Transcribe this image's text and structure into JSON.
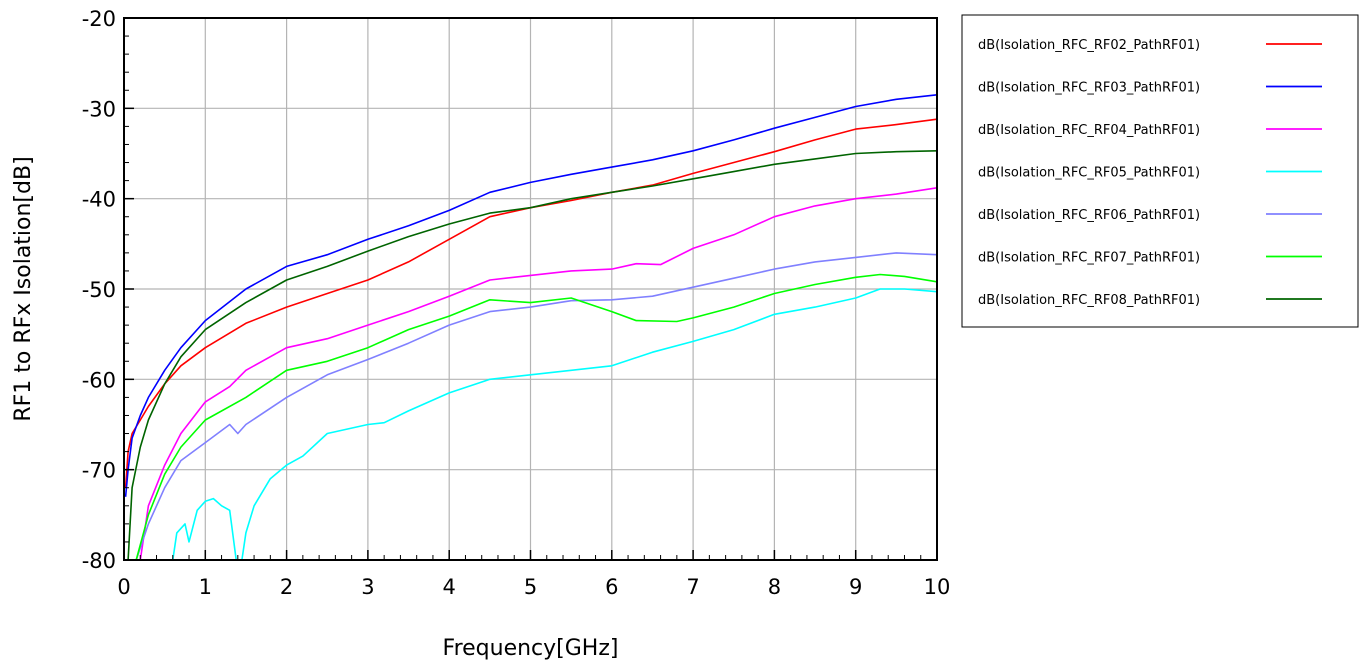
{
  "chart_data": {
    "type": "line",
    "title": "",
    "xlabel": "Frequency[GHz]",
    "ylabel": "RF1 to RFx Isolation[dB]",
    "xlim": [
      0,
      10
    ],
    "ylim": [
      -80,
      -20
    ],
    "x_ticks": [
      "0",
      "1",
      "2",
      "3",
      "4",
      "5",
      "6",
      "7",
      "8",
      "9",
      "10"
    ],
    "y_ticks": [
      "-20",
      "-30",
      "-40",
      "-50",
      "-60",
      "-70",
      "-80"
    ],
    "grid": true,
    "legend_position": "right",
    "series": [
      {
        "name": "dB(Isolation_RFC_RF02_PathRF01)",
        "color": "#ff0000",
        "points": [
          [
            0.02,
            -72
          ],
          [
            0.05,
            -68
          ],
          [
            0.1,
            -66
          ],
          [
            0.2,
            -64.5
          ],
          [
            0.3,
            -63
          ],
          [
            0.5,
            -60.5
          ],
          [
            0.7,
            -58.5
          ],
          [
            1.0,
            -56.5
          ],
          [
            1.5,
            -53.8
          ],
          [
            2.0,
            -52
          ],
          [
            2.5,
            -50.5
          ],
          [
            3.0,
            -49
          ],
          [
            3.5,
            -47
          ],
          [
            4.0,
            -44.5
          ],
          [
            4.5,
            -42
          ],
          [
            5.0,
            -41
          ],
          [
            5.5,
            -40.2
          ],
          [
            6.0,
            -39.3
          ],
          [
            6.5,
            -38.5
          ],
          [
            7.0,
            -37.2
          ],
          [
            7.5,
            -36
          ],
          [
            8.0,
            -34.8
          ],
          [
            8.5,
            -33.5
          ],
          [
            9.0,
            -32.3
          ],
          [
            9.5,
            -31.8
          ],
          [
            10.0,
            -31.2
          ]
        ]
      },
      {
        "name": "dB(Isolation_RFC_RF03_PathRF01)",
        "color": "#0000ff",
        "points": [
          [
            0.02,
            -73
          ],
          [
            0.05,
            -70
          ],
          [
            0.1,
            -66.5
          ],
          [
            0.2,
            -64
          ],
          [
            0.3,
            -62
          ],
          [
            0.5,
            -59
          ],
          [
            0.7,
            -56.5
          ],
          [
            1.0,
            -53.5
          ],
          [
            1.5,
            -50
          ],
          [
            2.0,
            -47.5
          ],
          [
            2.5,
            -46.2
          ],
          [
            3.0,
            -44.5
          ],
          [
            3.5,
            -43
          ],
          [
            4.0,
            -41.3
          ],
          [
            4.5,
            -39.3
          ],
          [
            5.0,
            -38.2
          ],
          [
            5.5,
            -37.3
          ],
          [
            6.0,
            -36.5
          ],
          [
            6.5,
            -35.7
          ],
          [
            7.0,
            -34.7
          ],
          [
            7.5,
            -33.5
          ],
          [
            8.0,
            -32.2
          ],
          [
            8.5,
            -31
          ],
          [
            9.0,
            -29.8
          ],
          [
            9.5,
            -29
          ],
          [
            10.0,
            -28.5
          ]
        ]
      },
      {
        "name": "dB(Isolation_RFC_RF04_PathRF01)",
        "color": "#ff00ff",
        "points": [
          [
            0.2,
            -80
          ],
          [
            0.3,
            -74
          ],
          [
            0.5,
            -69.5
          ],
          [
            0.7,
            -66
          ],
          [
            1.0,
            -62.5
          ],
          [
            1.3,
            -60.8
          ],
          [
            1.5,
            -59
          ],
          [
            2.0,
            -56.5
          ],
          [
            2.5,
            -55.5
          ],
          [
            3.0,
            -54
          ],
          [
            3.5,
            -52.5
          ],
          [
            4.0,
            -50.8
          ],
          [
            4.5,
            -49
          ],
          [
            5.0,
            -48.5
          ],
          [
            5.5,
            -48
          ],
          [
            6.0,
            -47.8
          ],
          [
            6.3,
            -47.2
          ],
          [
            6.6,
            -47.3
          ],
          [
            7.0,
            -45.5
          ],
          [
            7.5,
            -44
          ],
          [
            8.0,
            -42
          ],
          [
            8.5,
            -40.8
          ],
          [
            9.0,
            -40
          ],
          [
            9.5,
            -39.5
          ],
          [
            10.0,
            -38.8
          ]
        ]
      },
      {
        "name": "dB(Isolation_RFC_RF05_PathRF01)",
        "color": "#00ffff",
        "points": [
          [
            0.6,
            -80
          ],
          [
            0.65,
            -77
          ],
          [
            0.75,
            -76
          ],
          [
            0.8,
            -78
          ],
          [
            0.9,
            -74.5
          ],
          [
            1.0,
            -73.5
          ],
          [
            1.1,
            -73.2
          ],
          [
            1.2,
            -74
          ],
          [
            1.3,
            -74.5
          ],
          [
            1.38,
            -80
          ],
          [
            1.45,
            -80
          ],
          [
            1.5,
            -77
          ],
          [
            1.6,
            -74
          ],
          [
            1.8,
            -71
          ],
          [
            2.0,
            -69.5
          ],
          [
            2.2,
            -68.5
          ],
          [
            2.5,
            -66
          ],
          [
            3.0,
            -65
          ],
          [
            3.2,
            -64.8
          ],
          [
            3.5,
            -63.5
          ],
          [
            4.0,
            -61.5
          ],
          [
            4.5,
            -60
          ],
          [
            5.0,
            -59.5
          ],
          [
            5.5,
            -59
          ],
          [
            6.0,
            -58.5
          ],
          [
            6.5,
            -57
          ],
          [
            7.0,
            -55.8
          ],
          [
            7.5,
            -54.5
          ],
          [
            8.0,
            -52.8
          ],
          [
            8.5,
            -52
          ],
          [
            9.0,
            -51
          ],
          [
            9.3,
            -50
          ],
          [
            9.6,
            -50
          ],
          [
            10.0,
            -50.3
          ]
        ]
      },
      {
        "name": "dB(Isolation_RFC_RF06_PathRF01)",
        "color": "#8080ff",
        "points": [
          [
            0.15,
            -80
          ],
          [
            0.3,
            -76
          ],
          [
            0.5,
            -72
          ],
          [
            0.7,
            -69
          ],
          [
            1.0,
            -67
          ],
          [
            1.3,
            -65
          ],
          [
            1.4,
            -66
          ],
          [
            1.5,
            -65
          ],
          [
            2.0,
            -62
          ],
          [
            2.5,
            -59.5
          ],
          [
            3.0,
            -57.8
          ],
          [
            3.5,
            -56
          ],
          [
            4.0,
            -54
          ],
          [
            4.5,
            -52.5
          ],
          [
            5.0,
            -52
          ],
          [
            5.5,
            -51.3
          ],
          [
            6.0,
            -51.2
          ],
          [
            6.5,
            -50.8
          ],
          [
            7.0,
            -49.8
          ],
          [
            7.5,
            -48.8
          ],
          [
            8.0,
            -47.8
          ],
          [
            8.5,
            -47
          ],
          [
            9.0,
            -46.5
          ],
          [
            9.5,
            -46
          ],
          [
            10.0,
            -46.2
          ]
        ]
      },
      {
        "name": "dB(Isolation_RFC_RF07_PathRF01)",
        "color": "#00ff00",
        "points": [
          [
            0.15,
            -80
          ],
          [
            0.3,
            -75
          ],
          [
            0.5,
            -70.5
          ],
          [
            0.7,
            -67.5
          ],
          [
            1.0,
            -64.5
          ],
          [
            1.5,
            -62
          ],
          [
            2.0,
            -59
          ],
          [
            2.5,
            -58
          ],
          [
            3.0,
            -56.5
          ],
          [
            3.5,
            -54.5
          ],
          [
            4.0,
            -53
          ],
          [
            4.5,
            -51.2
          ],
          [
            5.0,
            -51.5
          ],
          [
            5.5,
            -51
          ],
          [
            6.0,
            -52.5
          ],
          [
            6.3,
            -53.5
          ],
          [
            6.8,
            -53.6
          ],
          [
            7.0,
            -53.2
          ],
          [
            7.5,
            -52
          ],
          [
            8.0,
            -50.5
          ],
          [
            8.5,
            -49.5
          ],
          [
            9.0,
            -48.7
          ],
          [
            9.3,
            -48.4
          ],
          [
            9.6,
            -48.6
          ],
          [
            10.0,
            -49.2
          ]
        ]
      },
      {
        "name": "dB(Isolation_RFC_RF08_PathRF01)",
        "color": "#006400",
        "points": [
          [
            0.05,
            -80
          ],
          [
            0.1,
            -72
          ],
          [
            0.2,
            -67.5
          ],
          [
            0.3,
            -64.5
          ],
          [
            0.5,
            -60.5
          ],
          [
            0.7,
            -57.5
          ],
          [
            1.0,
            -54.5
          ],
          [
            1.5,
            -51.5
          ],
          [
            2.0,
            -49
          ],
          [
            2.5,
            -47.5
          ],
          [
            3.0,
            -45.8
          ],
          [
            3.5,
            -44.2
          ],
          [
            4.0,
            -42.8
          ],
          [
            4.5,
            -41.6
          ],
          [
            5.0,
            -41
          ],
          [
            5.5,
            -40
          ],
          [
            6.0,
            -39.3
          ],
          [
            6.5,
            -38.6
          ],
          [
            7.0,
            -37.8
          ],
          [
            7.5,
            -37
          ],
          [
            8.0,
            -36.2
          ],
          [
            8.5,
            -35.6
          ],
          [
            9.0,
            -35
          ],
          [
            9.5,
            -34.8
          ],
          [
            10.0,
            -34.7
          ]
        ]
      }
    ]
  }
}
